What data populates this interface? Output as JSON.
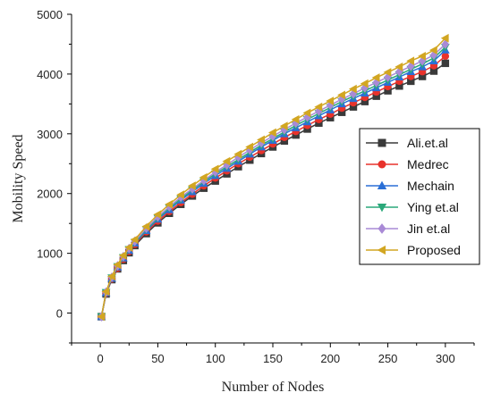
{
  "chart_data": {
    "type": "line",
    "title": "",
    "xlabel": "Number of Nodes",
    "ylabel": "Mobility Speed",
    "xlim": [
      -25,
      325
    ],
    "ylim": [
      -500,
      5000
    ],
    "xticks": [
      0,
      50,
      100,
      150,
      200,
      250,
      300
    ],
    "yticks": [
      0,
      1000,
      2000,
      3000,
      4000,
      5000
    ],
    "x_tick_labels": [
      "0",
      "50",
      "100",
      "150",
      "200",
      "250",
      "300"
    ],
    "y_tick_labels": [
      "0",
      "1000",
      "2000",
      "3000",
      "4000",
      "5000"
    ],
    "grid": false,
    "legend_position": "right",
    "x": [
      1,
      5,
      10,
      15,
      20,
      25,
      30,
      40,
      50,
      60,
      70,
      80,
      90,
      100,
      110,
      120,
      130,
      140,
      150,
      160,
      170,
      180,
      190,
      200,
      210,
      220,
      230,
      240,
      250,
      260,
      270,
      280,
      290,
      300
    ],
    "series": [
      {
        "name": "Ali.et.al",
        "marker": "square",
        "color": "#3a3a3a",
        "values": [
          -60,
          320,
          560,
          740,
          880,
          1010,
          1130,
          1330,
          1510,
          1670,
          1820,
          1960,
          2090,
          2210,
          2330,
          2450,
          2560,
          2670,
          2780,
          2880,
          2980,
          3080,
          3180,
          3270,
          3360,
          3450,
          3540,
          3630,
          3720,
          3800,
          3880,
          3960,
          4050,
          4180
        ]
      },
      {
        "name": "Medrec",
        "marker": "circle",
        "color": "#e8322b",
        "values": [
          -60,
          330,
          570,
          750,
          900,
          1030,
          1150,
          1360,
          1540,
          1700,
          1850,
          1990,
          2130,
          2260,
          2380,
          2500,
          2610,
          2720,
          2830,
          2940,
          3040,
          3140,
          3240,
          3330,
          3430,
          3520,
          3610,
          3700,
          3790,
          3880,
          3960,
          4040,
          4140,
          4300
        ]
      },
      {
        "name": "Mechain",
        "marker": "triangle-up",
        "color": "#2a6fd6",
        "values": [
          -60,
          340,
          580,
          770,
          920,
          1050,
          1170,
          1380,
          1570,
          1730,
          1890,
          2030,
          2170,
          2300,
          2420,
          2540,
          2660,
          2780,
          2890,
          3000,
          3100,
          3200,
          3300,
          3400,
          3500,
          3590,
          3680,
          3770,
          3860,
          3950,
          4040,
          4120,
          4220,
          4400
        ]
      },
      {
        "name": "Ying et.al",
        "marker": "triangle-down",
        "color": "#2aa87a",
        "values": [
          -60,
          345,
          590,
          780,
          930,
          1065,
          1185,
          1400,
          1590,
          1760,
          1910,
          2060,
          2200,
          2330,
          2450,
          2570,
          2690,
          2810,
          2920,
          3030,
          3140,
          3240,
          3340,
          3440,
          3540,
          3630,
          3720,
          3810,
          3900,
          3990,
          4080,
          4170,
          4270,
          4450
        ]
      },
      {
        "name": "Jin et.al",
        "marker": "diamond",
        "color": "#a98ad6",
        "values": [
          -60,
          350,
          600,
          790,
          945,
          1080,
          1200,
          1420,
          1610,
          1780,
          1940,
          2080,
          2220,
          2360,
          2480,
          2610,
          2730,
          2850,
          2960,
          3070,
          3180,
          3280,
          3380,
          3480,
          3580,
          3670,
          3770,
          3860,
          3950,
          4040,
          4130,
          4220,
          4320,
          4500
        ]
      },
      {
        "name": "Proposed",
        "marker": "triangle-left",
        "color": "#d2a622",
        "values": [
          -60,
          360,
          615,
          810,
          965,
          1100,
          1230,
          1450,
          1650,
          1820,
          1980,
          2130,
          2270,
          2410,
          2540,
          2660,
          2780,
          2900,
          3020,
          3130,
          3240,
          3350,
          3450,
          3550,
          3650,
          3750,
          3840,
          3940,
          4030,
          4120,
          4220,
          4300,
          4400,
          4600
        ]
      }
    ]
  }
}
